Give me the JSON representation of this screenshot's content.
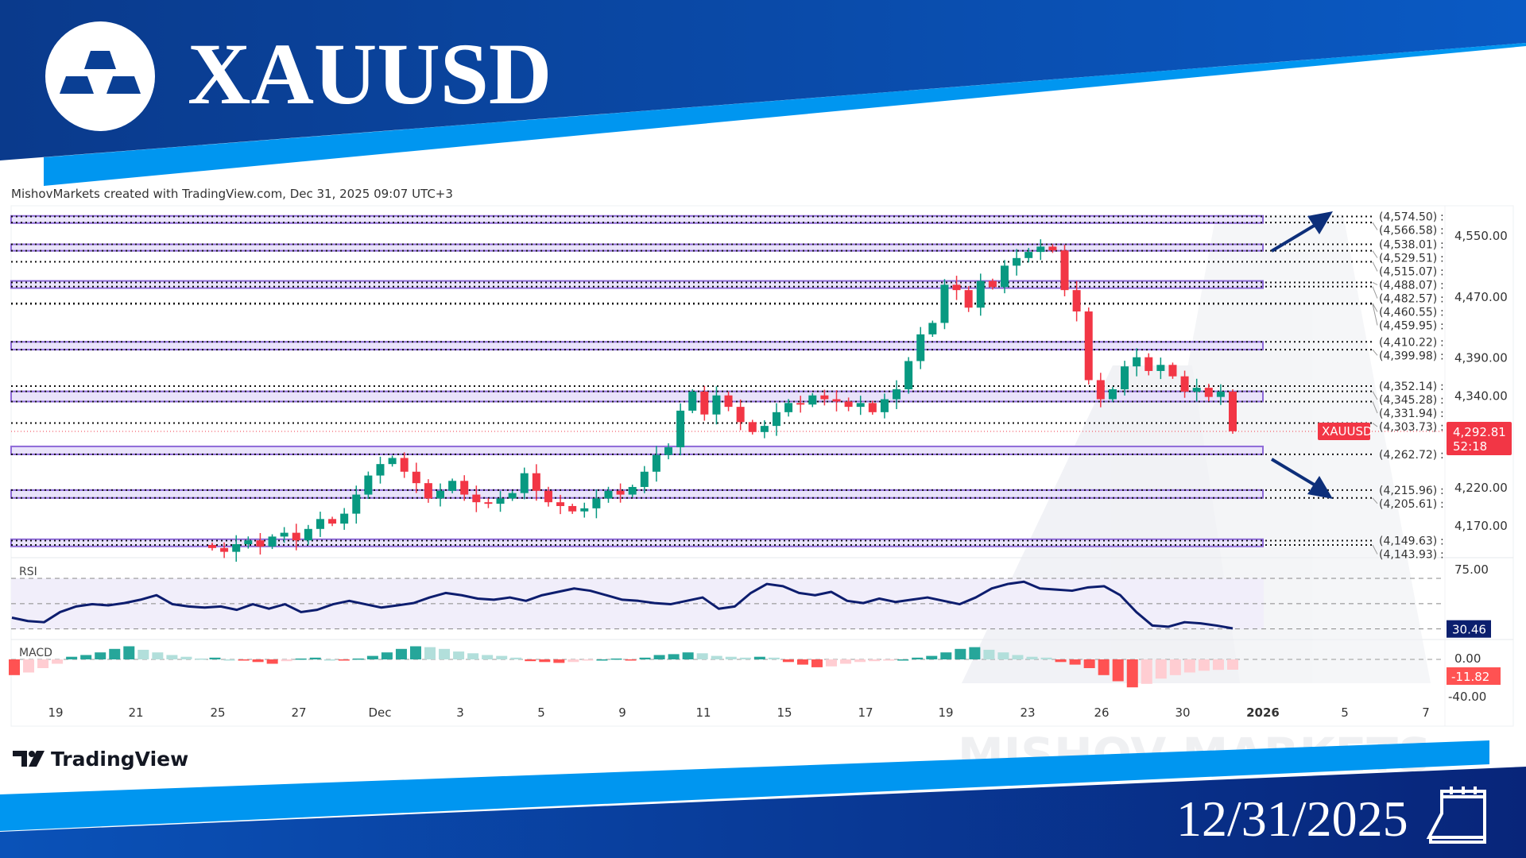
{
  "header": {
    "symbol_title": "XAUUSD",
    "logo": "gold-bars-icon",
    "attribution": "MishovMarkets created with TradingView.com, Dec 31, 2025 09:07 UTC+3"
  },
  "footer": {
    "tradingview_logo": "TradingView",
    "date": "12/31/2025",
    "calendar_icon": "calendar-icon"
  },
  "watermark": "MISHOV MARKETS",
  "colors": {
    "header_dark": "#0b3f94",
    "header_light": "#0096f0",
    "candle_up": "#089981",
    "candle_down": "#f23645",
    "zone_fill": "#e9e3fa",
    "zone_border": "#8e6ad8",
    "rsi_line": "#0d1d6e",
    "arrow": "#0d2f7a"
  },
  "chart_data": {
    "type": "candlestick",
    "symbol": "XAUUSD",
    "current_price": {
      "label": "XAUUSD",
      "price": "4,292.81",
      "countdown": "52:18",
      "value": 4292.81
    },
    "price_axis": {
      "ticks": [
        "4,550.00",
        "4,470.00",
        "4,390.00",
        "4,340.00",
        "4,220.00",
        "4,170.00"
      ],
      "tick_values": [
        4550,
        4470,
        4390,
        4340,
        4220,
        4170
      ],
      "range": [
        4130,
        4580
      ]
    },
    "time_axis": {
      "ticks": [
        "19",
        "21",
        "25",
        "27",
        "Dec",
        "3",
        "5",
        "9",
        "11",
        "15",
        "17",
        "19",
        "23",
        "26",
        "30",
        "2026",
        "5",
        "7"
      ]
    },
    "closes": [
      4140,
      4135,
      4145,
      4150,
      4142,
      4155,
      4160,
      4150,
      4165,
      4178,
      4172,
      4185,
      4210,
      4235,
      4250,
      4258,
      4240,
      4225,
      4205,
      4215,
      4228,
      4210,
      4200,
      4198,
      4205,
      4212,
      4238,
      4215,
      4200,
      4195,
      4188,
      4192,
      4205,
      4215,
      4210,
      4220,
      4240,
      4262,
      4272,
      4320,
      4345,
      4315,
      4340,
      4325,
      4305,
      4292,
      4300,
      4318,
      4330,
      4328,
      4340,
      4335,
      4332,
      4325,
      4330,
      4318,
      4335,
      4348,
      4385,
      4420,
      4435,
      4485,
      4478,
      4455,
      4490,
      4482,
      4510,
      4520,
      4528,
      4535,
      4530,
      4478,
      4450,
      4360,
      4335,
      4348,
      4378,
      4390,
      4372,
      4380,
      4365,
      4345,
      4350,
      4338,
      4345,
      4293
    ],
    "zones": [
      {
        "labels": [
          "(4,574.50)",
          "(4,566.58)"
        ],
        "values": [
          4574.5,
          4566.58
        ]
      },
      {
        "labels": [
          "(4,538.01)",
          "(4,529.51)"
        ],
        "values": [
          4538.01,
          4529.51
        ]
      },
      {
        "labels": [
          "(4,488.07)",
          "(4,482.57)"
        ],
        "values": [
          4488.07,
          4482.57
        ]
      },
      {
        "labels": [
          "(4,410.22)",
          "(4,399.98)"
        ],
        "values": [
          4410.22,
          4399.98
        ]
      },
      {
        "labels": [
          "(4,345.28)",
          "(4,331.94)"
        ],
        "values": [
          4345.28,
          4331.94
        ]
      },
      {
        "labels": [
          "(4,262.72)"
        ],
        "values": [
          4262.72
        ]
      },
      {
        "labels": [
          "(4,215.96)",
          "(4,205.61)"
        ],
        "values": [
          4215.96,
          4205.61
        ]
      },
      {
        "labels": [
          "(4,149.63)",
          "(4,143.93)"
        ],
        "values": [
          4149.63,
          4143.93
        ]
      }
    ],
    "lines": [
      {
        "label": "(4,515.07)",
        "value": 4515.07
      },
      {
        "label": "(4,460.55)",
        "value": 4460.55
      },
      {
        "label": "(4,459.95)",
        "value": 4459.95
      },
      {
        "label": "(4,352.14)",
        "value": 4352.14
      },
      {
        "label": "(4,303.73)",
        "value": 4303.73
      }
    ],
    "rsi": {
      "label": "RSI",
      "levels": [
        75,
        30
      ],
      "tick": "75.00",
      "current": "30.46",
      "values": [
        40,
        37,
        36,
        45,
        50,
        52,
        51,
        53,
        56,
        60,
        52,
        50,
        49,
        50,
        47,
        52,
        48,
        52,
        45,
        47,
        52,
        55,
        52,
        49,
        51,
        53,
        58,
        62,
        60,
        57,
        56,
        58,
        55,
        60,
        63,
        66,
        64,
        60,
        56,
        55,
        53,
        52,
        55,
        58,
        48,
        50,
        62,
        70,
        68,
        62,
        60,
        63,
        55,
        53,
        57,
        54,
        56,
        58,
        55,
        52,
        58,
        66,
        70,
        72,
        66,
        65,
        64,
        67,
        68,
        60,
        45,
        33,
        32,
        36,
        35,
        33,
        30.46
      ]
    },
    "macd": {
      "label": "MACD",
      "ticks": [
        "0.00",
        "-40.00"
      ],
      "current": "-11.82",
      "values": [
        -18,
        -15,
        -10,
        -5,
        3,
        5,
        8,
        12,
        15,
        11,
        8,
        5,
        3,
        1,
        2,
        0,
        -1,
        -3,
        -5,
        -2,
        1,
        2,
        0,
        -1,
        1,
        4,
        8,
        12,
        15,
        14,
        12,
        9,
        7,
        5,
        4,
        2,
        -2,
        -3,
        -4,
        -3,
        -1,
        0,
        1,
        -1,
        2,
        5,
        6,
        8,
        7,
        4,
        3,
        2,
        3,
        2,
        -3,
        -6,
        -9,
        -8,
        -5,
        -3,
        -2,
        -1,
        0,
        2,
        4,
        8,
        12,
        14,
        11,
        8,
        5,
        3,
        2,
        -3,
        -6,
        -10,
        -18,
        -25,
        -32,
        -28,
        -22,
        -18,
        -15,
        -13,
        -12,
        -11.82
      ]
    }
  }
}
